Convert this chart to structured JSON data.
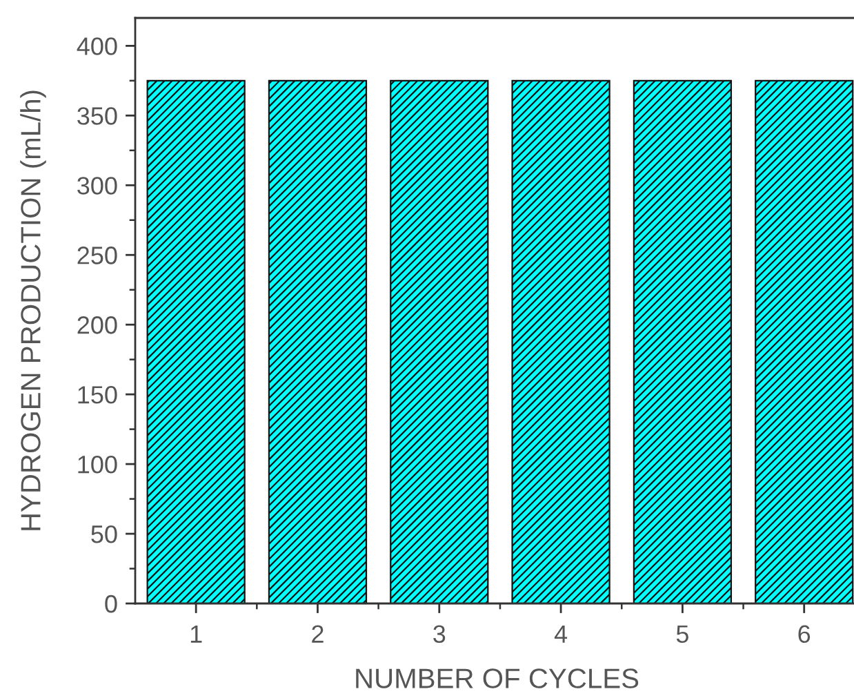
{
  "chart_data": {
    "type": "bar",
    "xlabel": "NUMBER OF CYCLES",
    "ylabel": "HYDROGEN PRODUCTION (mL/h)",
    "categories": [
      "1",
      "2",
      "3",
      "4",
      "5",
      "6"
    ],
    "values": [
      375,
      375,
      375,
      375,
      375,
      375
    ],
    "color": "#00ffff",
    "ylim": [
      0,
      420
    ],
    "yticks": [
      0,
      50,
      100,
      150,
      200,
      250,
      300,
      350,
      400
    ]
  }
}
